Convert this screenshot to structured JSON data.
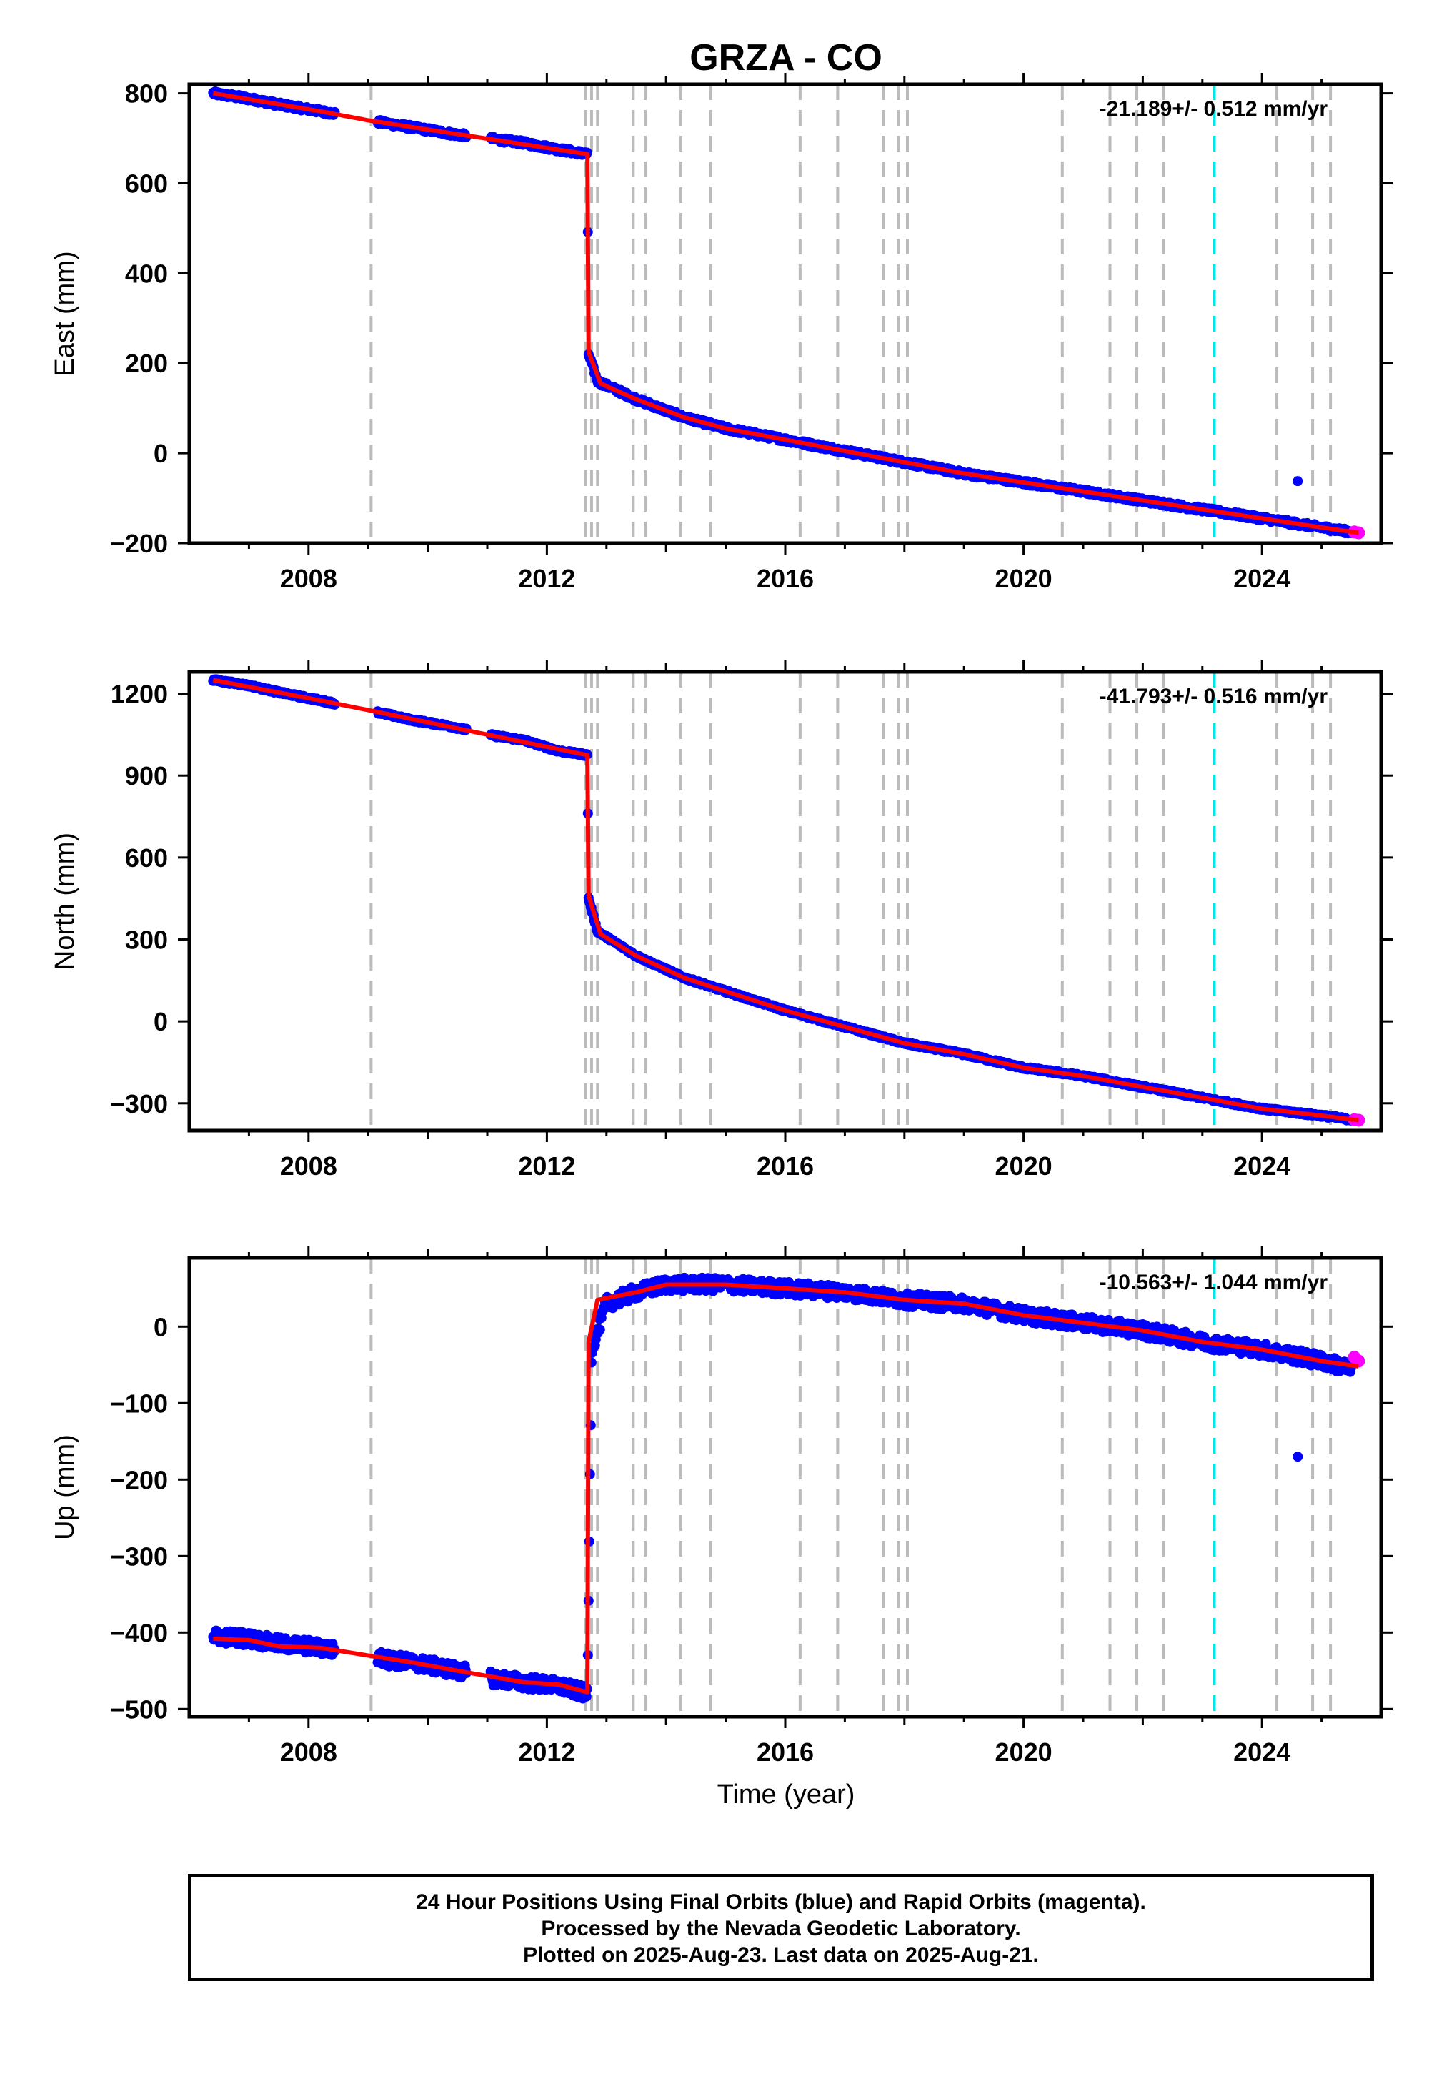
{
  "title": "GRZA - CO",
  "xlabel": "Time (year)",
  "footer": {
    "line1": "24 Hour Positions Using Final Orbits (blue) and Rapid Orbits (magenta).",
    "line2": "Processed by the Nevada Geodetic Laboratory.",
    "line3": "Plotted on 2025-Aug-23. Last data on 2025-Aug-21."
  },
  "colors": {
    "final": "#0000ff",
    "rapid": "#ff00ff",
    "model": "#ff0000",
    "break": "#bbbbbb",
    "event": "#00e5e5"
  },
  "chart_data": [
    {
      "type": "scatter",
      "ylabel": "East (mm)",
      "rate": "-21.189+/- 0.512 mm/yr",
      "xlim": [
        2006.0,
        2026.0
      ],
      "ylim": [
        -200,
        820
      ],
      "xticks": [
        2008,
        2012,
        2016,
        2020,
        2024
      ],
      "yticks": [
        -200,
        0,
        200,
        400,
        600,
        800
      ],
      "series": [
        {
          "name": "Final Orbits",
          "x": [
            2006.4,
            2007.0,
            2007.5,
            2008.2,
            2009.0,
            2009.7,
            2010.4,
            2011.0,
            2011.6,
            2012.2,
            2012.68,
            2012.7,
            2012.85,
            2013.5,
            2014.3,
            2015.0,
            2016.0,
            2017.0,
            2018.0,
            2019.0,
            2020.0,
            2021.0,
            2022.0,
            2023.0,
            2024.0,
            2025.0,
            2025.5
          ],
          "y": [
            800,
            788,
            775,
            760,
            740,
            725,
            710,
            700,
            690,
            675,
            665,
            220,
            160,
            120,
            80,
            55,
            30,
            5,
            -20,
            -45,
            -65,
            -85,
            -105,
            -125,
            -145,
            -165,
            -175
          ]
        },
        {
          "name": "Rapid Orbits",
          "x": [
            2025.55,
            2025.62
          ],
          "y": [
            -175,
            -177
          ]
        }
      ],
      "outliers": [
        {
          "x": 2024.6,
          "y": -62
        }
      ],
      "model": {
        "x": [
          2006.4,
          2008.2,
          2009.0,
          2012.68,
          2012.7,
          2012.9,
          2013.5,
          2014.3,
          2015.0,
          2016.0,
          2017.0,
          2018.0,
          2019.0,
          2020.0,
          2021.0,
          2022.0,
          2023.0,
          2024.0,
          2025.0,
          2025.62
        ],
        "y": [
          800,
          760,
          740,
          665,
          225,
          155,
          120,
          80,
          55,
          30,
          5,
          -20,
          -45,
          -65,
          -85,
          -105,
          -125,
          -145,
          -165,
          -177
        ]
      },
      "breaks": [
        2009.05,
        2012.65,
        2012.75,
        2012.85,
        2013.45,
        2013.65,
        2014.25,
        2014.75,
        2016.25,
        2016.88,
        2017.65,
        2017.9,
        2018.05,
        2020.65,
        2021.45,
        2021.9,
        2022.35,
        2024.25,
        2024.85,
        2025.15
      ],
      "event": 2023.2
    },
    {
      "type": "scatter",
      "ylabel": "North (mm)",
      "rate": "-41.793+/- 0.516 mm/yr",
      "xlim": [
        2006.0,
        2026.0
      ],
      "ylim": [
        -400,
        1280
      ],
      "xticks": [
        2008,
        2012,
        2016,
        2020,
        2024
      ],
      "yticks": [
        -300,
        0,
        300,
        600,
        900,
        1200
      ],
      "series": [
        {
          "name": "Final Orbits",
          "x": [
            2006.4,
            2007.0,
            2007.5,
            2008.2,
            2009.0,
            2009.7,
            2010.4,
            2011.0,
            2011.6,
            2012.2,
            2012.68,
            2012.7,
            2012.85,
            2013.5,
            2014.3,
            2015.0,
            2016.0,
            2017.0,
            2018.0,
            2019.0,
            2020.0,
            2021.0,
            2022.0,
            2023.0,
            2024.0,
            2025.0,
            2025.5
          ],
          "y": [
            1250,
            1230,
            1205,
            1175,
            1140,
            1105,
            1080,
            1050,
            1030,
            990,
            975,
            450,
            330,
            240,
            160,
            110,
            40,
            -20,
            -80,
            -120,
            -170,
            -200,
            -240,
            -280,
            -320,
            -345,
            -360
          ]
        },
        {
          "name": "Rapid Orbits",
          "x": [
            2025.55,
            2025.62
          ],
          "y": [
            -360,
            -362
          ]
        }
      ],
      "outliers": [],
      "model": {
        "x": [
          2006.4,
          2008.2,
          2009.0,
          2012.68,
          2012.7,
          2012.9,
          2013.5,
          2014.3,
          2015.0,
          2016.0,
          2017.0,
          2018.0,
          2019.0,
          2020.0,
          2021.0,
          2022.0,
          2023.0,
          2024.0,
          2025.0,
          2025.62
        ],
        "y": [
          1250,
          1175,
          1140,
          975,
          460,
          320,
          240,
          160,
          110,
          40,
          -20,
          -80,
          -120,
          -170,
          -200,
          -240,
          -280,
          -320,
          -345,
          -362
        ]
      },
      "breaks": [
        2009.05,
        2012.65,
        2012.75,
        2012.85,
        2013.45,
        2013.65,
        2014.25,
        2014.75,
        2016.25,
        2016.88,
        2017.65,
        2017.9,
        2018.05,
        2020.65,
        2021.45,
        2021.9,
        2022.35,
        2024.25,
        2024.85,
        2025.15
      ],
      "event": 2023.2
    },
    {
      "type": "scatter",
      "ylabel": "Up (mm)",
      "rate": "-10.563+/- 1.044 mm/yr",
      "xlim": [
        2006.0,
        2026.0
      ],
      "ylim": [
        -510,
        90
      ],
      "xticks": [
        2008,
        2012,
        2016,
        2020,
        2024
      ],
      "yticks": [
        -500,
        -400,
        -300,
        -200,
        -100,
        0
      ],
      "series": [
        {
          "name": "Final Orbits",
          "x": [
            2006.4,
            2007.0,
            2007.5,
            2008.0,
            2008.2,
            2009.3,
            2009.8,
            2010.5,
            2011.1,
            2011.6,
            2012.2,
            2012.68,
            2012.75,
            2013.0,
            2013.5,
            2014.0,
            2014.5,
            2015.0,
            2016.0,
            2017.0,
            2018.0,
            2019.0,
            2020.0,
            2021.0,
            2022.0,
            2023.0,
            2024.0,
            2025.0,
            2025.5
          ],
          "y": [
            -405,
            -408,
            -415,
            -418,
            -420,
            -435,
            -440,
            -450,
            -460,
            -465,
            -470,
            -480,
            -30,
            30,
            45,
            55,
            55,
            55,
            50,
            45,
            35,
            30,
            15,
            5,
            -5,
            -20,
            -30,
            -45,
            -55
          ]
        },
        {
          "name": "Rapid Orbits",
          "x": [
            2025.55,
            2025.62
          ],
          "y": [
            -40,
            -45
          ]
        }
      ],
      "outliers": [
        {
          "x": 2024.6,
          "y": -170
        }
      ],
      "model": {
        "x": [
          2006.4,
          2007.0,
          2007.5,
          2008.2,
          2009.0,
          2009.8,
          2010.5,
          2011.1,
          2011.6,
          2012.2,
          2012.68,
          2012.7,
          2012.85,
          2013.5,
          2014.0,
          2015.0,
          2016.0,
          2017.0,
          2018.0,
          2019.0,
          2020.0,
          2021.0,
          2022.0,
          2023.0,
          2024.0,
          2025.0,
          2025.62
        ],
        "y": [
          -408,
          -410,
          -418,
          -420,
          -430,
          -440,
          -450,
          -458,
          -465,
          -468,
          -478,
          -20,
          35,
          45,
          55,
          55,
          50,
          45,
          35,
          30,
          15,
          5,
          -5,
          -20,
          -30,
          -45,
          -52
        ]
      },
      "breaks": [
        2009.05,
        2012.65,
        2012.75,
        2012.85,
        2013.45,
        2013.65,
        2014.25,
        2014.75,
        2016.25,
        2016.88,
        2017.65,
        2017.9,
        2018.05,
        2020.65,
        2021.45,
        2021.9,
        2022.35,
        2024.25,
        2024.85,
        2025.15
      ],
      "event": 2023.2
    }
  ]
}
